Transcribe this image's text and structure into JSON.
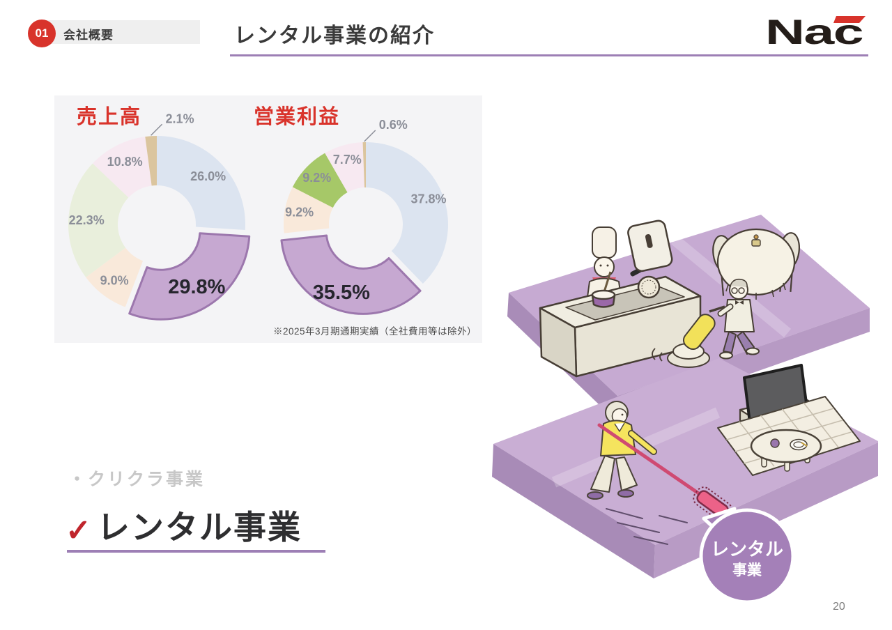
{
  "header": {
    "section_badge": "01",
    "section_label": "会社概要",
    "title": "レンタル事業の紹介",
    "logo_text": "Nac"
  },
  "colors": {
    "accent_purple": "#9d7fb5",
    "title_red": "#d9332b",
    "badge_red": "#d8332b",
    "highlight_purple": "#c6a8d1",
    "highlight_stroke": "#9c77ad"
  },
  "chart_panel": {
    "note": "※2025年3月期通期実績（全社費用等は除外）"
  },
  "chart_data": [
    {
      "type": "pie",
      "subtype": "donut",
      "title": "売上高",
      "unit": "%",
      "start_angle_deg": 0,
      "direction": "clockwise",
      "legend": "none",
      "highlight_stroke": "#9c77ad",
      "slices": [
        {
          "label": "26.0%",
          "value": 26.0,
          "color": "#dce4f0",
          "style": "inside"
        },
        {
          "label": "29.8%",
          "value": 29.8,
          "color": "#c6a8d1",
          "style": "highlight"
        },
        {
          "label": "9.0%",
          "value": 9.0,
          "color": "#f9e9da",
          "style": "inside"
        },
        {
          "label": "22.3%",
          "value": 22.3,
          "color": "#e9efdc",
          "style": "inside"
        },
        {
          "label": "10.8%",
          "value": 10.8,
          "color": "#f7e9f1",
          "style": "inside"
        },
        {
          "label": "2.1%",
          "value": 2.1,
          "color": "#dbc59e",
          "style": "callout"
        }
      ]
    },
    {
      "type": "pie",
      "subtype": "donut",
      "title": "営業利益",
      "unit": "%",
      "start_angle_deg": 0,
      "direction": "clockwise",
      "legend": "none",
      "highlight_stroke": "#9c77ad",
      "slices": [
        {
          "label": "37.8%",
          "value": 37.8,
          "color": "#dce4f0",
          "style": "inside"
        },
        {
          "label": "35.5%",
          "value": 35.5,
          "color": "#c6a8d1",
          "style": "highlight"
        },
        {
          "label": "9.2%",
          "value": 9.2,
          "color": "#f9e9da",
          "style": "inside"
        },
        {
          "label": "9.2%",
          "value": 9.2,
          "color": "#a6c868",
          "style": "inside"
        },
        {
          "label": "7.7%",
          "value": 7.7,
          "color": "#f7e9f1",
          "style": "inside"
        },
        {
          "label": "0.6%",
          "value": 0.6,
          "color": "#dbc59e",
          "style": "callout"
        }
      ]
    }
  ],
  "business_list": {
    "dimmed_item": "・クリクラ事業",
    "check_mark": "✓",
    "active_item": "レンタル事業"
  },
  "illustration": {
    "bubble_line1": "レンタル",
    "bubble_line2": "事業"
  },
  "page_number": "20"
}
